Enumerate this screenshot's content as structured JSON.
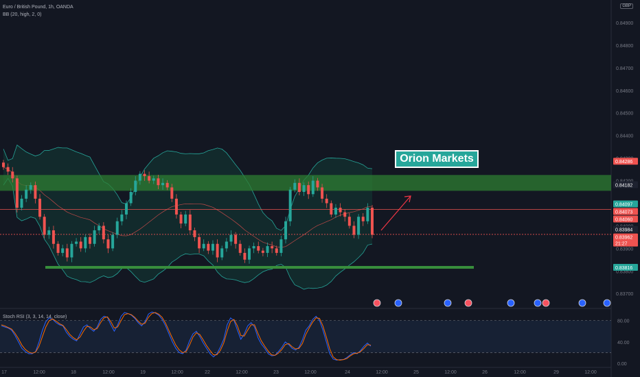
{
  "header": {
    "title": "Euro / British Pound, 1h, OANDA",
    "indicator": "BB (20, high, 2, 0)",
    "currency": "GBP"
  },
  "rsi": {
    "label": "Stoch RSI (3, 3, 14, 14, close)"
  },
  "brand": {
    "label": "Orion Markets"
  },
  "colors": {
    "background": "#131722",
    "up": "#26a69a",
    "down": "#ef5350",
    "band_fill": "#123a35",
    "zone": "#2e7d32",
    "support": "#388e3c",
    "k_line": "#2962ff",
    "d_line": "#ff6d00",
    "annotation_arrow": "#f23645"
  },
  "chart_data": [
    {
      "type": "candlestick",
      "title": "Euro / British Pound, 1h, OANDA",
      "ylim": [
        0.8364,
        0.85
      ],
      "yticks": [
        "0.84900",
        "0.84800",
        "0.84700",
        "0.84600",
        "0.84500",
        "0.84400",
        "0.84300",
        "0.84200",
        "0.84100",
        "0.84000",
        "0.83900",
        "0.83800",
        "0.83700"
      ],
      "xticks": [
        "17",
        "12:00",
        "18",
        "12:00",
        "19",
        "12:00",
        "22",
        "12:00",
        "23",
        "12:00",
        "24",
        "12:00",
        "25",
        "12:00",
        "26",
        "12:00",
        "29",
        "12:00"
      ],
      "closes": [
        0.8426,
        0.8424,
        0.8421,
        0.8408,
        0.8412,
        0.8416,
        0.8418,
        0.8412,
        0.8404,
        0.8396,
        0.8398,
        0.8392,
        0.8388,
        0.839,
        0.8386,
        0.8392,
        0.8393,
        0.839,
        0.8395,
        0.8392,
        0.8398,
        0.84,
        0.8394,
        0.839,
        0.8396,
        0.8402,
        0.8405,
        0.841,
        0.8415,
        0.842,
        0.8423,
        0.8422,
        0.842,
        0.8421,
        0.8418,
        0.8419,
        0.8417,
        0.8412,
        0.8405,
        0.8401,
        0.8405,
        0.8398,
        0.8395,
        0.839,
        0.8392,
        0.8389,
        0.8392,
        0.8386,
        0.839,
        0.8393,
        0.8396,
        0.8392,
        0.8388,
        0.8385,
        0.839,
        0.8391,
        0.8389,
        0.8388,
        0.8391,
        0.839,
        0.8388,
        0.8394,
        0.8402,
        0.8416,
        0.8419,
        0.8415,
        0.8418,
        0.8414,
        0.842,
        0.8417,
        0.8412,
        0.841,
        0.8405,
        0.8408,
        0.8406,
        0.8404,
        0.84,
        0.8396,
        0.8404,
        0.8402,
        0.8408,
        0.8396
      ],
      "current_price": 0.83962,
      "bollinger_bands": {
        "period": 20,
        "source": "high",
        "stddev": 2
      },
      "horizontal_levels": [
        0.84073,
        0.83962
      ],
      "zones": [
        {
          "from": 0.8416,
          "to": 0.842
        }
      ],
      "support_line": 0.83816,
      "price_labels": [
        {
          "value": "0.84286",
          "color": "#ef5350"
        },
        {
          "value": "0.84182",
          "color": "#1e2230"
        },
        {
          "value": "0.84097",
          "color": "#26a69a"
        },
        {
          "value": "0.84073",
          "color": "#ef5350"
        },
        {
          "value": "0.84060",
          "color": "#ef5350"
        },
        {
          "value": "0.83984",
          "color": "#1e2230"
        },
        {
          "value": "0.83962",
          "sub": "21:27",
          "color": "#ef5350"
        },
        {
          "value": "0.83816",
          "color": "#26a69a"
        }
      ]
    },
    {
      "type": "line",
      "title": "Stoch RSI (3, 3, 14, 14, close)",
      "ylim": [
        -5,
        100
      ],
      "yticks": [
        "80.00",
        "40.00",
        "0.00"
      ],
      "series": [
        {
          "values": [
            70,
            68,
            66,
            62,
            52,
            40,
            28,
            22,
            18,
            18,
            22,
            40,
            62,
            78,
            85,
            82,
            76,
            72,
            70,
            58,
            50,
            45,
            42,
            55,
            68,
            72,
            65,
            60,
            68,
            82,
            88,
            86,
            72,
            60,
            72,
            88,
            95,
            93,
            90,
            84,
            76,
            70,
            78,
            92,
            96,
            94,
            90,
            82,
            70,
            55,
            40,
            28,
            20,
            18,
            25,
            42,
            55,
            60,
            50,
            38,
            28,
            18,
            12,
            18,
            30,
            45,
            72,
            85,
            80,
            62,
            45,
            55,
            70,
            76,
            68,
            48,
            36,
            28,
            18,
            14,
            15,
            22,
            30,
            40,
            35,
            28,
            25,
            30,
            44,
            62,
            70,
            82,
            88,
            80,
            62,
            40,
            18,
            8,
            6,
            7,
            7,
            11,
            16,
            20,
            18,
            24,
            32,
            38,
            32
          ]
        },
        {
          "values": [
            72,
            70,
            67,
            64,
            56,
            46,
            34,
            26,
            21,
            19,
            21,
            32,
            50,
            68,
            80,
            83,
            79,
            74,
            71,
            63,
            54,
            48,
            44,
            49,
            60,
            69,
            68,
            63,
            65,
            76,
            85,
            87,
            78,
            66,
            68,
            80,
            91,
            93,
            91,
            86,
            79,
            73,
            75,
            86,
            93,
            95,
            92,
            86,
            75,
            61,
            47,
            34,
            25,
            20,
            22,
            34,
            49,
            57,
            54,
            44,
            33,
            24,
            16,
            16,
            24,
            38,
            60,
            78,
            82,
            70,
            52,
            51,
            62,
            72,
            72,
            56,
            42,
            32,
            23,
            16,
            15,
            19,
            26,
            35,
            37,
            31,
            27,
            28,
            37,
            54,
            66,
            77,
            85,
            84,
            70,
            49,
            27,
            12,
            7,
            6,
            7,
            9,
            14,
            18,
            19,
            22,
            28,
            35,
            34
          ]
        }
      ]
    }
  ]
}
